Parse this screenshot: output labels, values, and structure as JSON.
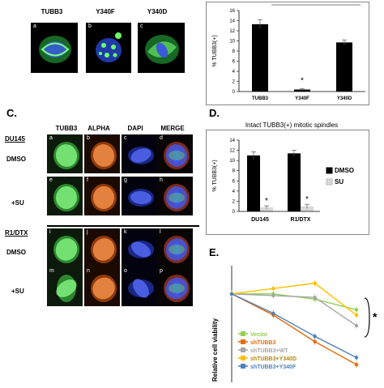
{
  "panel_a": {
    "headers": [
      "TUBB3",
      "Y340F",
      "Y340D"
    ],
    "letters": [
      "a",
      "b",
      "c"
    ]
  },
  "panel_b": {
    "chart_data": {
      "type": "bar",
      "categories": [
        "TUBB3",
        "Y340F",
        "Y340D"
      ],
      "values": [
        13.3,
        0.4,
        9.7
      ],
      "errors": [
        0.9,
        0.2,
        0.5
      ],
      "ylabel": "% TUBB3(+)",
      "ylim": [
        0,
        16
      ],
      "yticks": [
        0,
        2,
        4,
        6,
        8,
        10,
        12,
        14,
        16
      ],
      "annotations": [
        "*"
      ],
      "bar_color": "#000000"
    }
  },
  "panel_c": {
    "label": "C.",
    "headers": [
      "TUBB3",
      "ALPHA",
      "DAPI",
      "MERGE"
    ],
    "row_labels": {
      "cell_line_1": "DU145",
      "dmso_1": "DMSO",
      "su_1": "+SU",
      "cell_line_2": "R1/DTX",
      "dmso_2": "DMSO",
      "su_2": "+SU"
    },
    "letters": [
      "a",
      "b",
      "c",
      "d",
      "e",
      "f",
      "g",
      "h",
      "i",
      "j",
      "k",
      "l",
      "m",
      "n",
      "o",
      "p"
    ]
  },
  "panel_d": {
    "label": "D.",
    "chart_data": {
      "type": "bar",
      "title": "Intact TUBB3(+) mitotic spindles",
      "categories": [
        "DU145",
        "R1/DTX"
      ],
      "series": [
        {
          "name": "DMSO",
          "values": [
            11.0,
            11.4
          ],
          "errors": [
            0.7,
            0.6
          ],
          "color": "#000000"
        },
        {
          "name": "SU",
          "values": [
            0.8,
            1.0
          ],
          "errors": [
            0.3,
            0.4
          ],
          "color": "#d9d9d9"
        }
      ],
      "ylabel": "% TUBB3(+)",
      "ylim": [
        0,
        14
      ],
      "yticks": [
        0,
        2,
        4,
        6,
        8,
        10,
        12,
        14
      ],
      "annotations": [
        "*",
        "*"
      ]
    }
  },
  "panel_e": {
    "label": "E.",
    "chart_data": {
      "type": "line",
      "ylabel": "Relative cell viability",
      "x": [
        0,
        1,
        2,
        3
      ],
      "series": [
        {
          "name": "Vector",
          "values": [
            1.0,
            1.0,
            0.97,
            0.91
          ],
          "color": "#92d050"
        },
        {
          "name": "shTUBB3",
          "values": [
            1.0,
            0.88,
            0.73,
            0.6
          ],
          "color": "#e46c0a"
        },
        {
          "name": "shTUBB3+WT",
          "values": [
            1.0,
            0.99,
            0.98,
            0.82
          ],
          "color": "#a6a6a6"
        },
        {
          "name": "shTUBB3+Y340D",
          "values": [
            1.0,
            1.03,
            1.06,
            0.88
          ],
          "color": "#ffc000"
        },
        {
          "name": "shTUBB3+Y340F",
          "values": [
            1.0,
            0.89,
            0.76,
            0.64
          ],
          "color": "#4f81bd"
        }
      ],
      "ylim": [
        0.5,
        1.15
      ],
      "annotations": [
        "*"
      ]
    }
  }
}
